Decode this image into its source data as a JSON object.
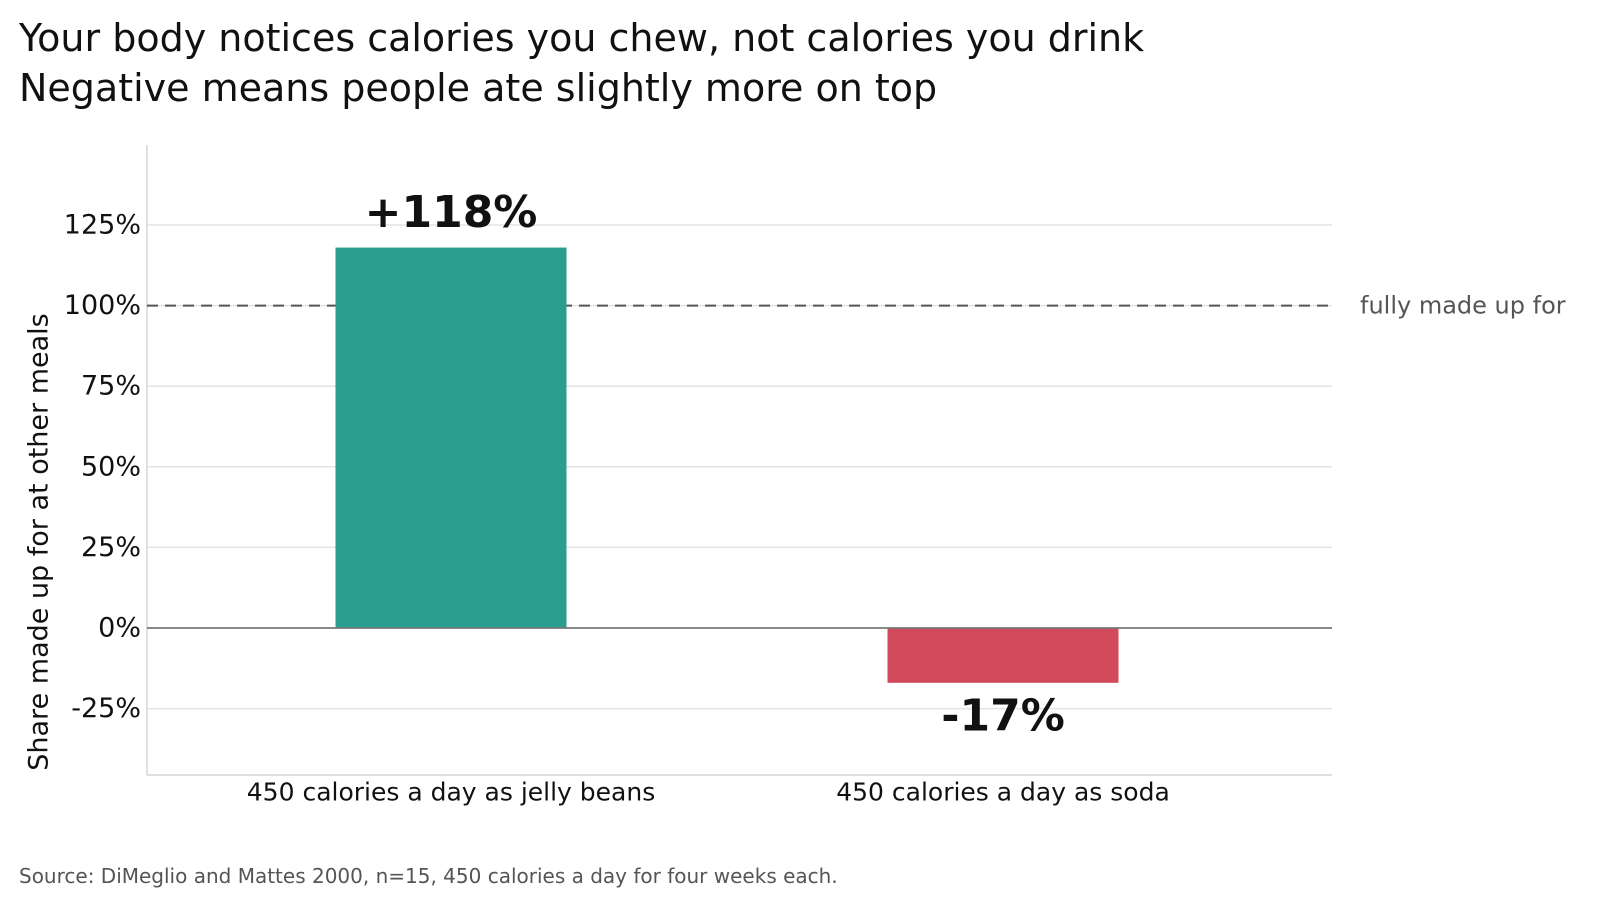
{
  "chart_data": {
    "type": "bar",
    "title": "Your body notices calories you chew, not calories you drink",
    "subtitle": "Negative means people ate slightly more on top",
    "ylabel": "Share made up for at other meals",
    "categories": [
      "450 calories a day as jelly beans",
      "450 calories a day as soda"
    ],
    "values": [
      118,
      -17
    ],
    "data_labels": [
      "+118%",
      "-17%"
    ],
    "bar_colors": [
      "#2a9d8f",
      "#d1495b"
    ],
    "ylim": [
      -45,
      150
    ],
    "yticks": [
      -25,
      0,
      25,
      50,
      75,
      100,
      125
    ],
    "ytick_labels": [
      "-25%",
      "0%",
      "25%",
      "50%",
      "75%",
      "100%",
      "125%"
    ],
    "reference_line": {
      "value": 100,
      "label": "fully made up for",
      "style": "dashed"
    },
    "grid": true
  },
  "source": "Source: DiMeglio and Mattes 2000, n=15, 450 calories a day for four weeks each."
}
